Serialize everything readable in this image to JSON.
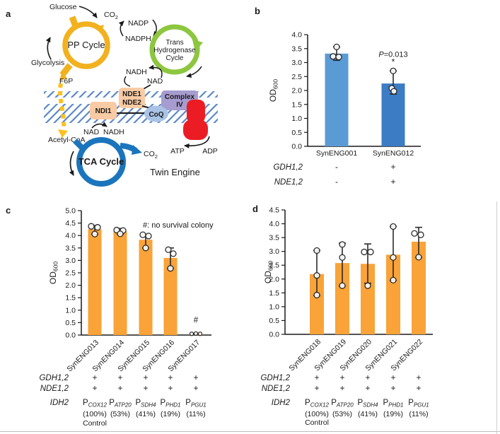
{
  "panels": {
    "a": "a",
    "b": "b",
    "c": "c",
    "d": "d"
  },
  "diagram": {
    "labels": {
      "glucose": "Glucose",
      "co2_main": "CO",
      "co2_sub": "2",
      "pp_cycle": "PP Cycle",
      "glycolysis": "Glycolysis",
      "f6p": "F6P",
      "nadp": "NADP",
      "nadph": "NADPH",
      "trans1": "Trans",
      "trans2": "Hydrogenase",
      "trans3": "Cycle",
      "nadh_upper": "NADH",
      "nad_upper": "NAD",
      "nde1": "NDE1",
      "nde2": "NDE2",
      "ndi1": "NDI1",
      "coq": "CoQ",
      "complex1": "Complex",
      "complex2": "IV",
      "nad_lower": "NAD",
      "nadh_lower": "NADH",
      "acetyl_coa": "Acetyl-CoA",
      "tca_cycle": "TCA Cycle",
      "co2_tca_main": "CO",
      "co2_tca_sub": "2",
      "atp": "ATP",
      "adp": "ADP",
      "twin_engine": "Twin Engine"
    },
    "colors": {
      "pp_yellow": "#F2B11E",
      "trans_green": "#8DC63F",
      "tca_blue": "#1B75BC",
      "synthase_red": "#EC1C24",
      "membrane_blue": "#5B88C9",
      "box_peach": "#F8CBA4",
      "box_purple": "#A79CCF",
      "coq_blue": "#A9C3E6",
      "box_text_blue": "#2D2FA8",
      "twin_gray": "#6D6E71",
      "dash_yellow": "#FFC01E"
    }
  },
  "chart_data": [
    {
      "id": "b",
      "type": "bar",
      "ylabel_main": "OD",
      "ylabel_sub": "600",
      "ylim": [
        0,
        4.0
      ],
      "ytick_step": 0.5,
      "categories": [
        "SynENG001",
        "SynENG012"
      ],
      "values": [
        3.32,
        2.25
      ],
      "bar_colors": [
        "#5B9BD5",
        "#3B7CC4"
      ],
      "error_lo": [
        3.08,
        1.87
      ],
      "error_hi": [
        3.56,
        2.7
      ],
      "points": [
        [
          [
            3.56,
            0
          ],
          [
            3.22,
            -5
          ],
          [
            3.2,
            3
          ]
        ],
        [
          [
            2.7,
            0
          ],
          [
            2.08,
            -2
          ],
          [
            1.97,
            1
          ]
        ]
      ],
      "p_annotation": {
        "bar": 1,
        "prefix": "P",
        "rest": "=0.013",
        "v": 3.2,
        "star": "*",
        "star_v": 2.93
      },
      "genotype_rows": [
        {
          "label": "GDH1,2",
          "values": [
            "-",
            "+"
          ]
        },
        {
          "label": "NDE1,2",
          "values": [
            "-",
            "+"
          ]
        }
      ]
    },
    {
      "id": "c",
      "type": "bar",
      "ylabel_main": "OD",
      "ylabel_sub": "600",
      "ylim": [
        0,
        5.0
      ],
      "ytick_step": 0.5,
      "categories": [
        "SynENG013",
        "SynENG014",
        "SynENG015",
        "SynENG016",
        "SynENG017"
      ],
      "values": [
        4.25,
        4.17,
        3.83,
        3.1,
        0.04
      ],
      "bar_colors": [
        "#F9A339",
        "#F9A339",
        "#F9A339",
        "#F9A339",
        "#F9A339"
      ],
      "error_lo": [
        4.05,
        4.05,
        3.5,
        2.68,
        null
      ],
      "error_hi": [
        4.4,
        4.28,
        4.05,
        3.5,
        null
      ],
      "points": [
        [
          [
            4.37,
            -5
          ],
          [
            4.33,
            4
          ],
          [
            4.06,
            0
          ]
        ],
        [
          [
            4.22,
            -5
          ],
          [
            4.2,
            4
          ],
          [
            4.07,
            0
          ]
        ],
        [
          [
            4.03,
            -4
          ],
          [
            3.98,
            4
          ],
          [
            3.5,
            0
          ]
        ],
        [
          [
            3.43,
            -3
          ],
          [
            3.27,
            4
          ],
          [
            2.68,
            0
          ]
        ],
        [
          [
            0.05,
            -6,
            2.5
          ],
          [
            0.06,
            0,
            2.5
          ],
          [
            0.05,
            6,
            2.5
          ]
        ]
      ],
      "note": "#: no survival colony",
      "hash_annotation": {
        "bar": 4,
        "text": "#",
        "v": 0.5
      },
      "genotype_rows": [
        {
          "label": "GDH1,2",
          "values": [
            "+",
            "+",
            "+",
            "+",
            "+"
          ]
        },
        {
          "label": "NDE1,2",
          "values": [
            "+",
            "+",
            "+",
            "+",
            "+"
          ]
        }
      ],
      "promoter_row": {
        "label": "IDH2",
        "entries": [
          {
            "main": "P",
            "sub": "COX12"
          },
          {
            "main": "P",
            "sub": "ATP20"
          },
          {
            "main": "P",
            "sub": "SDH4"
          },
          {
            "main": "P",
            "sub": "PHD1"
          },
          {
            "main": "P",
            "sub": "PGU1"
          }
        ],
        "percentages": [
          "(100%)",
          "(53%)",
          "(41%)",
          "(19%)",
          "(11%)"
        ],
        "control": "Control"
      }
    },
    {
      "id": "d",
      "type": "bar",
      "ylabel_main": "OD",
      "ylabel_sub": "600",
      "ylim": [
        0,
        4.5
      ],
      "ytick_step": 0.5,
      "categories": [
        "SynENG018",
        "SynENG019",
        "SynENG020",
        "SynENG021",
        "SynENG022"
      ],
      "values": [
        2.18,
        2.58,
        2.55,
        2.88,
        3.35
      ],
      "bar_colors": [
        "#F9A339",
        "#F9A339",
        "#F9A339",
        "#F9A339",
        "#F9A339"
      ],
      "error_lo": [
        1.4,
        1.75,
        1.85,
        1.95,
        2.78
      ],
      "error_hi": [
        3.03,
        3.3,
        3.27,
        3.9,
        3.87
      ],
      "points": [
        [
          [
            3.03,
            0
          ],
          [
            2.13,
            0
          ],
          [
            1.42,
            0
          ]
        ],
        [
          [
            3.25,
            0
          ],
          [
            2.78,
            0
          ],
          [
            1.76,
            0
          ]
        ],
        [
          [
            2.98,
            -5
          ],
          [
            2.98,
            4
          ],
          [
            1.76,
            0
          ]
        ],
        [
          [
            3.9,
            0
          ],
          [
            2.78,
            0
          ],
          [
            1.96,
            0
          ]
        ],
        [
          [
            3.65,
            -6
          ],
          [
            3.6,
            3
          ],
          [
            2.79,
            0
          ]
        ]
      ],
      "genotype_rows": [
        {
          "label": "GDH1,2",
          "values": [
            "+",
            "+",
            "+",
            "+",
            "+"
          ]
        },
        {
          "label": "NDE1,2",
          "values": [
            "+",
            "+",
            "+",
            "+",
            "+"
          ]
        }
      ],
      "promoter_row": {
        "label": "IDH2",
        "entries": [
          {
            "main": "P",
            "sub": "COX12"
          },
          {
            "main": "P",
            "sub": "ATP20"
          },
          {
            "main": "P",
            "sub": "SDH4"
          },
          {
            "main": "P",
            "sub": "PHD1"
          },
          {
            "main": "P",
            "sub": "PGU1"
          }
        ],
        "percentages": [
          "(100%)",
          "(53%)",
          "(41%)",
          "(19%)",
          "(11%)"
        ],
        "control": "Control"
      }
    }
  ]
}
